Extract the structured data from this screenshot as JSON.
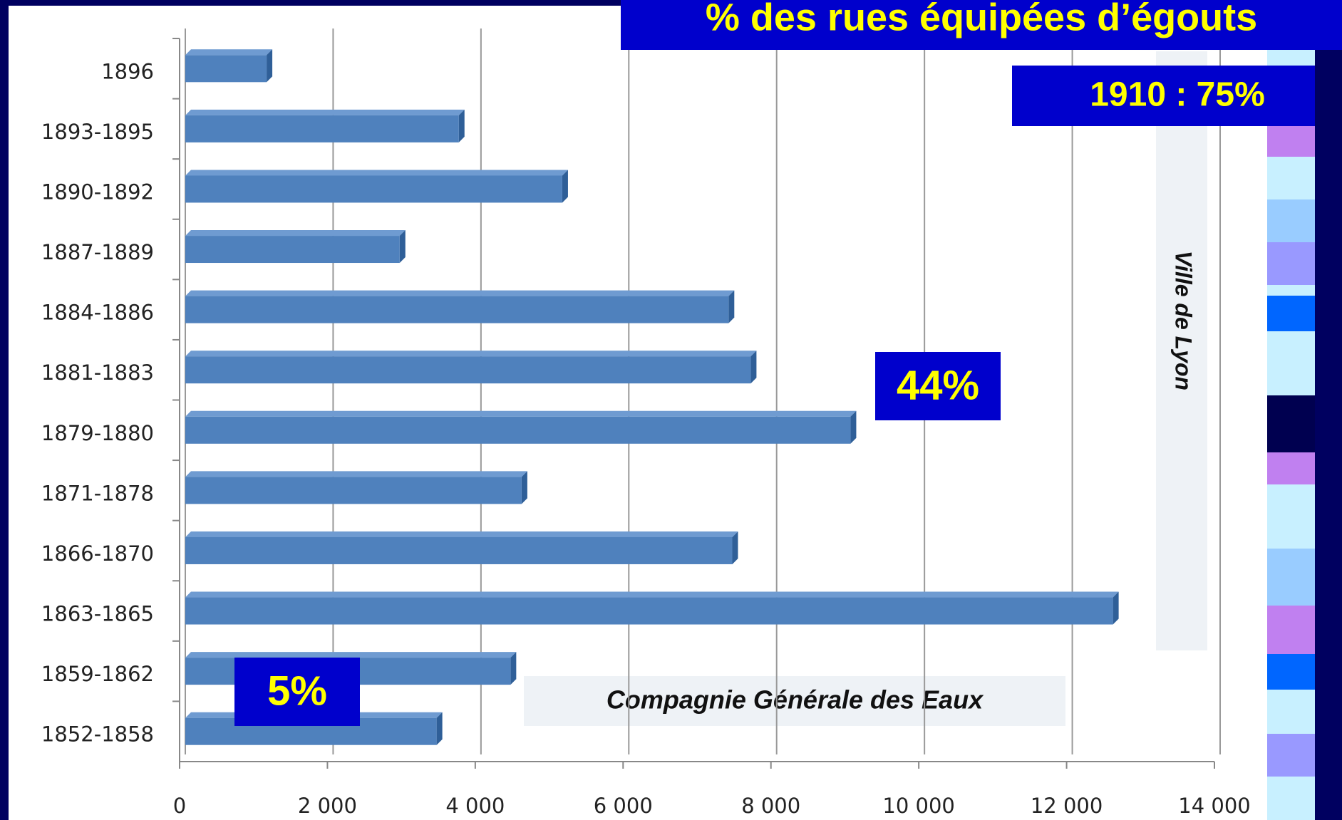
{
  "chart_data": {
    "type": "bar",
    "orientation": "horizontal",
    "title": "% des rues équipées d’égouts",
    "annotations": [
      "1910 : 75%",
      "44%",
      "5%",
      "Compagnie Générale des Eaux",
      "Ville de Lyon"
    ],
    "categories": [
      "1852-1858",
      "1859-1862",
      "1863-1865",
      "1866-1870",
      "1871-1878",
      "1879-1880",
      "1881-1883",
      "1884-1886",
      "1887-1889",
      "1890-1892",
      "1893-1895",
      "1896"
    ],
    "values": [
      3400,
      4400,
      12550,
      7400,
      4550,
      9000,
      7650,
      7350,
      2900,
      5100,
      3700,
      1100
    ],
    "color": "#4f81bd",
    "xlim": [
      0,
      14000
    ],
    "xticks": [
      0,
      {
        "value": 2000,
        "label": "2 000"
      },
      {
        "value": 4000,
        "label": "4 000"
      },
      {
        "value": 6000,
        "label": "6 000"
      },
      {
        "value": 8000,
        "label": "8 000"
      },
      {
        "value": 10000,
        "label": "10 000"
      },
      {
        "value": 12000,
        "label": "12 000"
      },
      {
        "value": 14000,
        "label": "14 000"
      }
    ],
    "grid": true
  }
}
